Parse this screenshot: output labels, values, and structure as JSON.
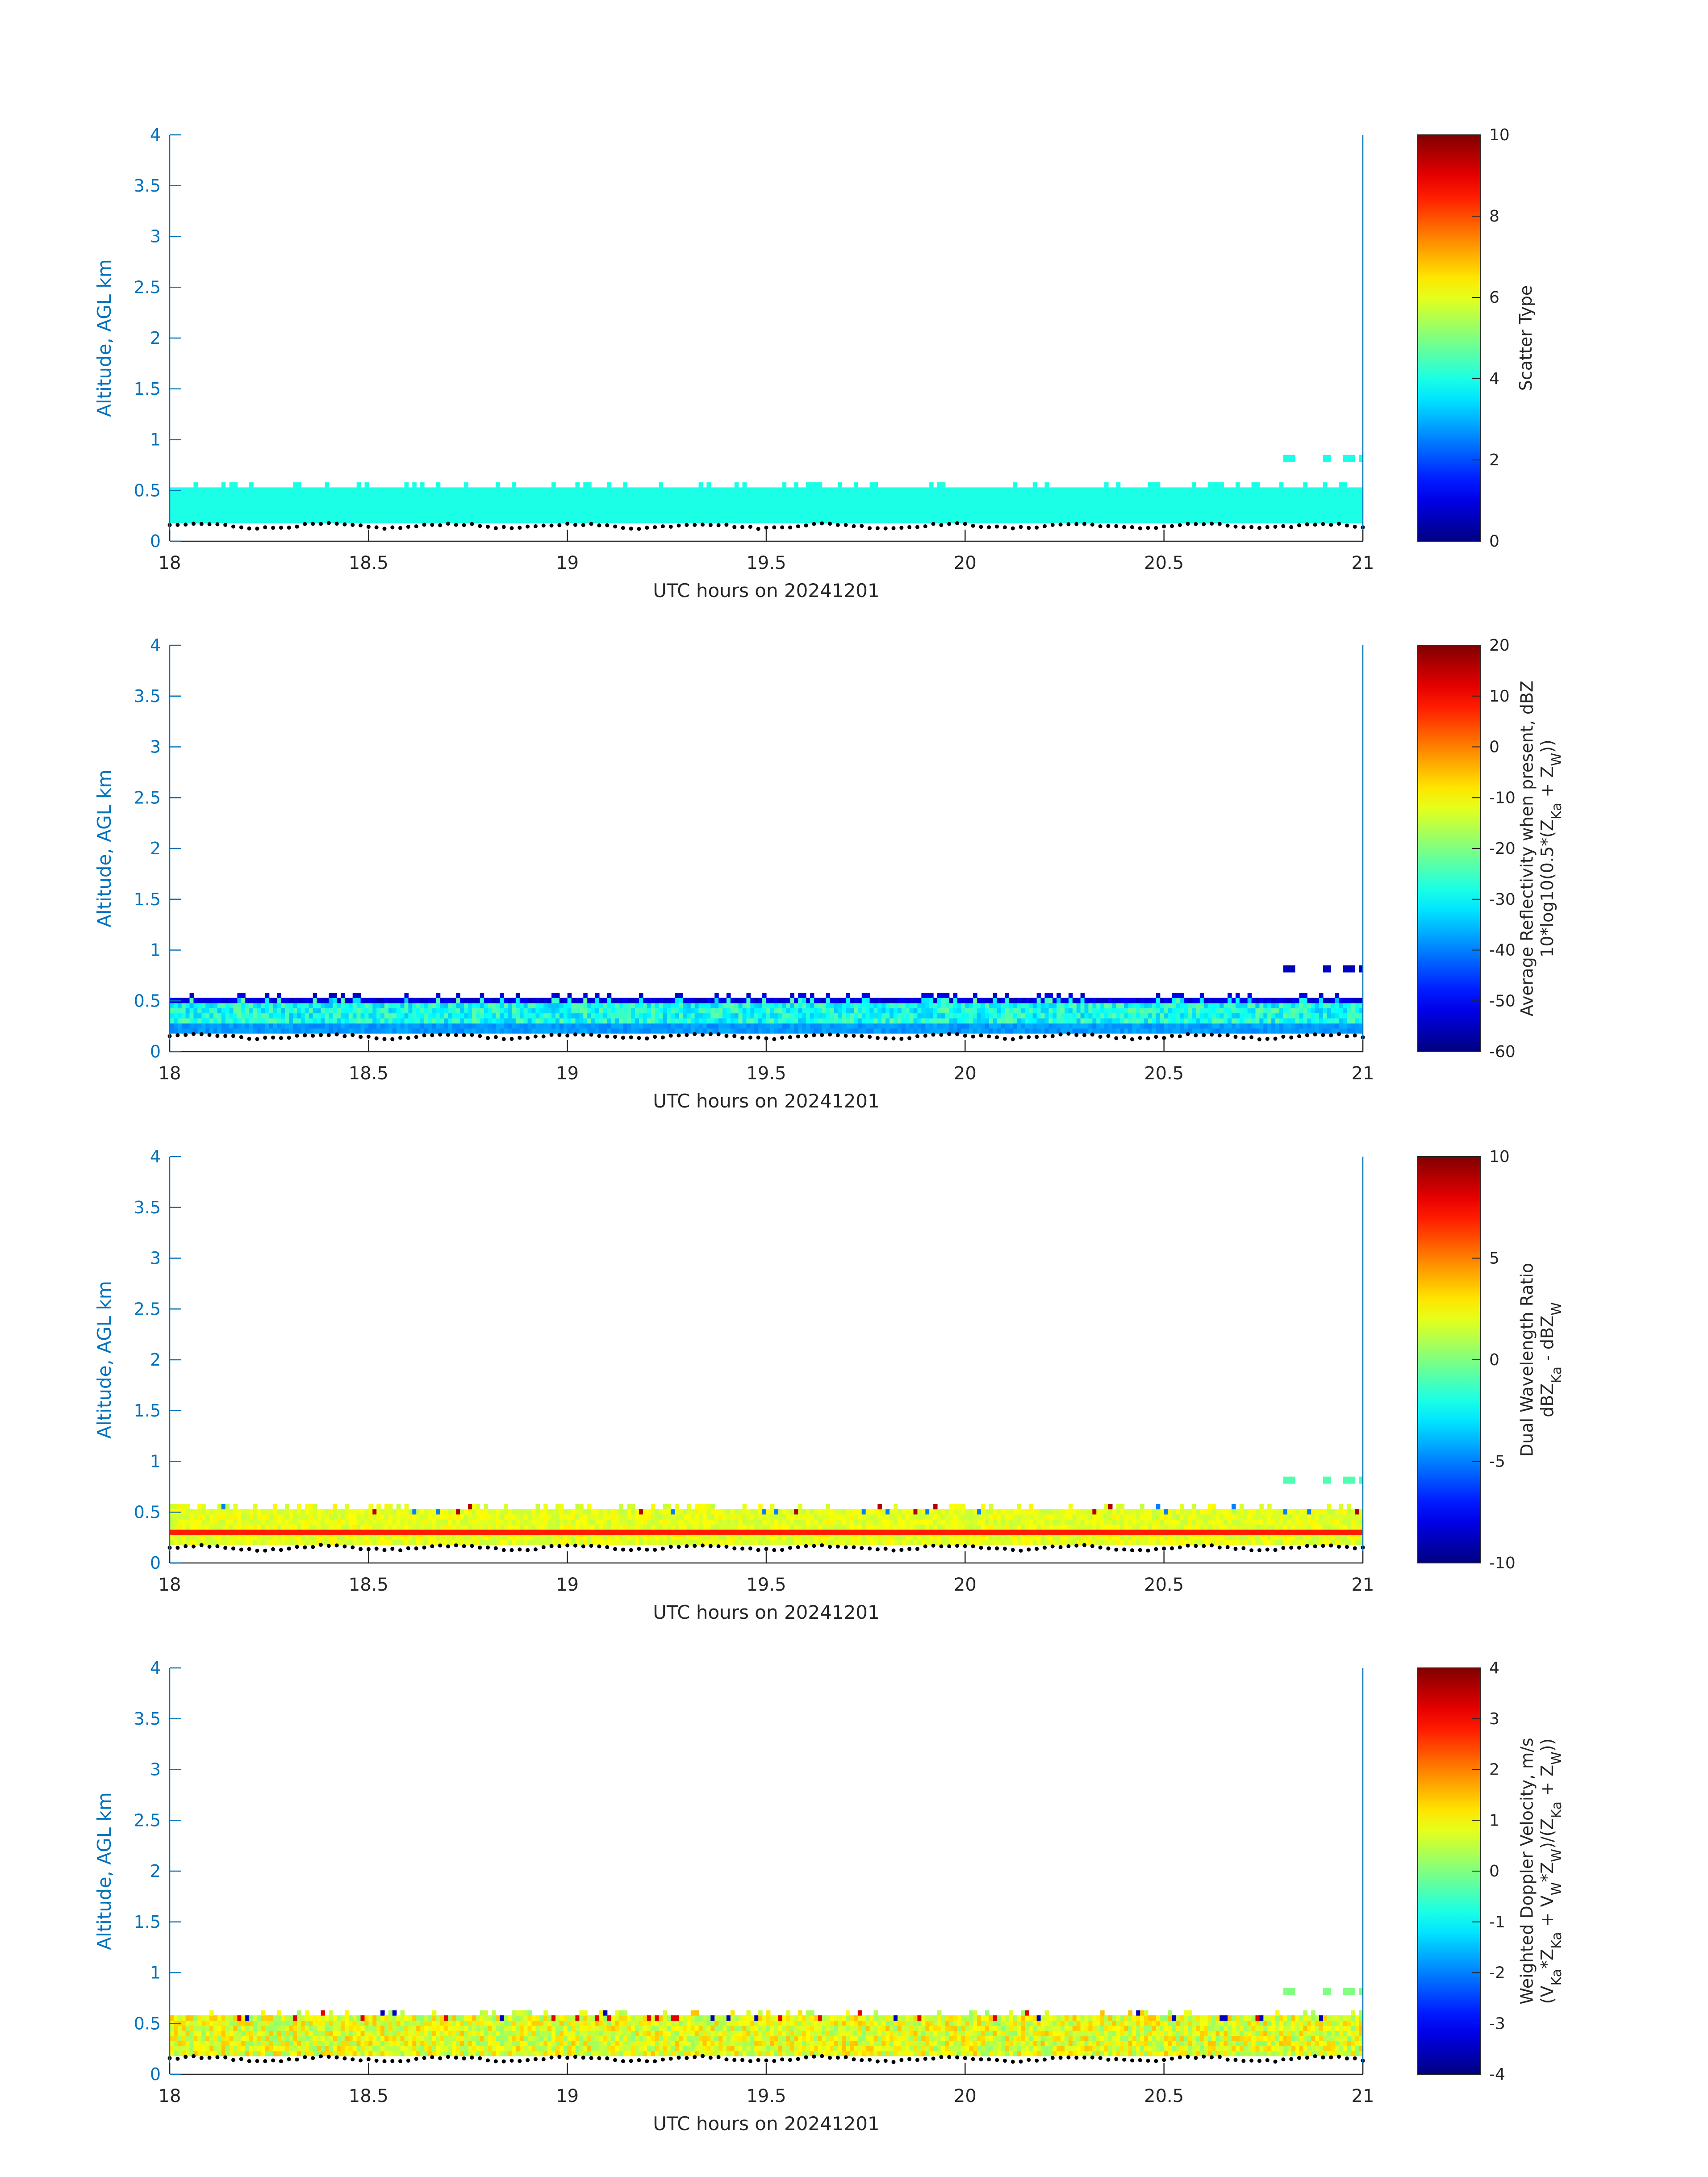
{
  "chart_data": [
    {
      "type": "heatmap",
      "title": "",
      "xlabel": "UTC hours on 20241201",
      "ylabel": "Altitude, AGL km",
      "xlim": [
        18,
        21
      ],
      "ylim": [
        0,
        4
      ],
      "x_ticks": [
        "18",
        "18.5",
        "19",
        "19.5",
        "20",
        "20.5",
        "21"
      ],
      "y_ticks": [
        "0",
        "0.5",
        "1",
        "1.5",
        "2",
        "2.5",
        "3",
        "3.5",
        "4"
      ],
      "colorbar": {
        "label_lines": [
          "Scatter Type"
        ],
        "ticks": [
          "0",
          "2",
          "4",
          "6",
          "8",
          "10"
        ],
        "range": [
          0,
          10
        ],
        "colormap": "jet"
      },
      "field": {
        "kind": "scatter_type",
        "layer_bottom_km": 0.18,
        "layer_top_km": 0.52,
        "typical_value": 4.0,
        "upper_patches_km": [
          0.78,
          0.85
        ],
        "upper_patches_hours": [
          20.8,
          21.0
        ]
      },
      "ground_dots": {
        "color": "#000000",
        "altitude_km": 0.16,
        "description": "surface altitude markers"
      }
    },
    {
      "type": "heatmap",
      "title": "",
      "xlabel": "UTC hours on 20241201",
      "ylabel": "Altitude, AGL km",
      "xlim": [
        18,
        21
      ],
      "ylim": [
        0,
        4
      ],
      "x_ticks": [
        "18",
        "18.5",
        "19",
        "19.5",
        "20",
        "20.5",
        "21"
      ],
      "y_ticks": [
        "0",
        "0.5",
        "1",
        "1.5",
        "2",
        "2.5",
        "3",
        "3.5",
        "4"
      ],
      "colorbar": {
        "label_lines": [
          "Average Reflectivity when present, dBZ",
          "10*log10(0.5*(Z",
          "Ka",
          " + Z",
          "W",
          "))"
        ],
        "ticks": [
          "-60",
          "-50",
          "-40",
          "-30",
          "-20",
          "-10",
          "0",
          "10",
          "20"
        ],
        "range": [
          -60,
          20
        ],
        "colormap": "jet"
      },
      "field": {
        "kind": "reflectivity",
        "layer_bottom_km": 0.18,
        "layer_top_km": 0.52,
        "core_value_range": [
          -35,
          -22
        ],
        "top_edge_value": -55,
        "upper_patches_km": [
          0.78,
          0.85
        ],
        "upper_patches_hours": [
          20.8,
          21.0
        ]
      }
    },
    {
      "type": "heatmap",
      "title": "",
      "xlabel": "UTC hours on 20241201",
      "ylabel": "Altitude, AGL km",
      "xlim": [
        18,
        21
      ],
      "ylim": [
        0,
        4
      ],
      "x_ticks": [
        "18",
        "18.5",
        "19",
        "19.5",
        "20",
        "20.5",
        "21"
      ],
      "y_ticks": [
        "0",
        "0.5",
        "1",
        "1.5",
        "2",
        "2.5",
        "3",
        "3.5",
        "4"
      ],
      "colorbar": {
        "label_lines": [
          "Dual Wavelength Ratio",
          "dBZ",
          "Ka",
          " - dBZ",
          "W"
        ],
        "ticks": [
          "-10",
          "-5",
          "0",
          "5",
          "10"
        ],
        "range": [
          -10,
          10
        ],
        "colormap": "jet"
      },
      "field": {
        "kind": "dwr",
        "layer_bottom_km": 0.18,
        "layer_top_km": 0.52,
        "typical_value": 2.0,
        "band_value": 7.0,
        "band_km": [
          0.25,
          0.3
        ],
        "upper_patches_km": [
          0.78,
          0.85
        ],
        "upper_patches_hours": [
          20.8,
          21.0
        ]
      }
    },
    {
      "type": "heatmap",
      "title": "",
      "xlabel": "UTC hours on 20241201",
      "ylabel": "Altitude, AGL km",
      "xlim": [
        18,
        21
      ],
      "ylim": [
        0,
        4
      ],
      "x_ticks": [
        "18",
        "18.5",
        "19",
        "19.5",
        "20",
        "20.5",
        "21"
      ],
      "y_ticks": [
        "0",
        "0.5",
        "1",
        "1.5",
        "2",
        "2.5",
        "3",
        "3.5",
        "4"
      ],
      "colorbar": {
        "label_lines": [
          "Weighted Doppler Velocity, m/s",
          "(V",
          "Ka",
          "*Z",
          "Ka",
          " + V",
          "W",
          "*Z",
          "W",
          ")/(Z",
          "Ka",
          " + Z",
          "W",
          "))"
        ],
        "ticks": [
          "-4",
          "-3",
          "-2",
          "-1",
          "0",
          "1",
          "2",
          "3",
          "4"
        ],
        "range": [
          -4,
          4
        ],
        "colormap": "jet"
      },
      "field": {
        "kind": "velocity",
        "layer_bottom_km": 0.18,
        "layer_top_km": 0.57,
        "typical_value": 0.8,
        "upper_patches_km": [
          0.78,
          0.85
        ],
        "upper_patches_hours": [
          20.8,
          21.0
        ]
      }
    }
  ]
}
